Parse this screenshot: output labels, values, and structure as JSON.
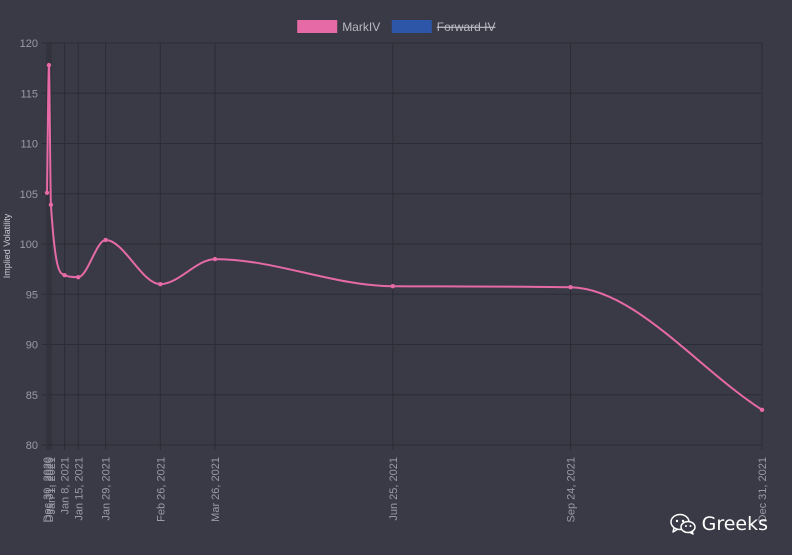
{
  "chart_data": {
    "type": "line",
    "title": "",
    "ylabel": "Implied Volatility",
    "xlabel": "",
    "ylim": [
      80,
      120
    ],
    "yticks": [
      80,
      85,
      90,
      95,
      100,
      105,
      110,
      115,
      120
    ],
    "grid": true,
    "legend_position": "top-center",
    "legend": [
      {
        "label": "MarkIV",
        "color": "#e56aa5",
        "hidden": false
      },
      {
        "label": "Forward IV",
        "color": "#2d56a8",
        "hidden": true
      }
    ],
    "x_tick_labels": [
      "Dec 30, 2020",
      "Dec 31, 2020",
      "Jan 1, 2021",
      "Jan 8, 2021",
      "Jan 15, 2021",
      "Jan 29, 2021",
      "Feb 26, 2021",
      "Mar 26, 2021",
      "Jun 25, 2021",
      "Sep 24, 2021",
      "Dec 31, 2021"
    ],
    "series": [
      {
        "name": "MarkIV",
        "color": "#e56aa5",
        "x": [
          "2020-12-30",
          "2020-12-31",
          "2021-01-01",
          "2021-01-08",
          "2021-01-15",
          "2021-01-29",
          "2021-02-26",
          "2021-03-26",
          "2021-06-25",
          "2021-09-24",
          "2021-12-31"
        ],
        "values": [
          105.1,
          117.8,
          103.9,
          96.9,
          96.7,
          100.4,
          96.0,
          98.5,
          95.8,
          95.7,
          83.5
        ]
      }
    ]
  },
  "watermark": {
    "text": "Greeks",
    "icon": "wechat-icon"
  }
}
